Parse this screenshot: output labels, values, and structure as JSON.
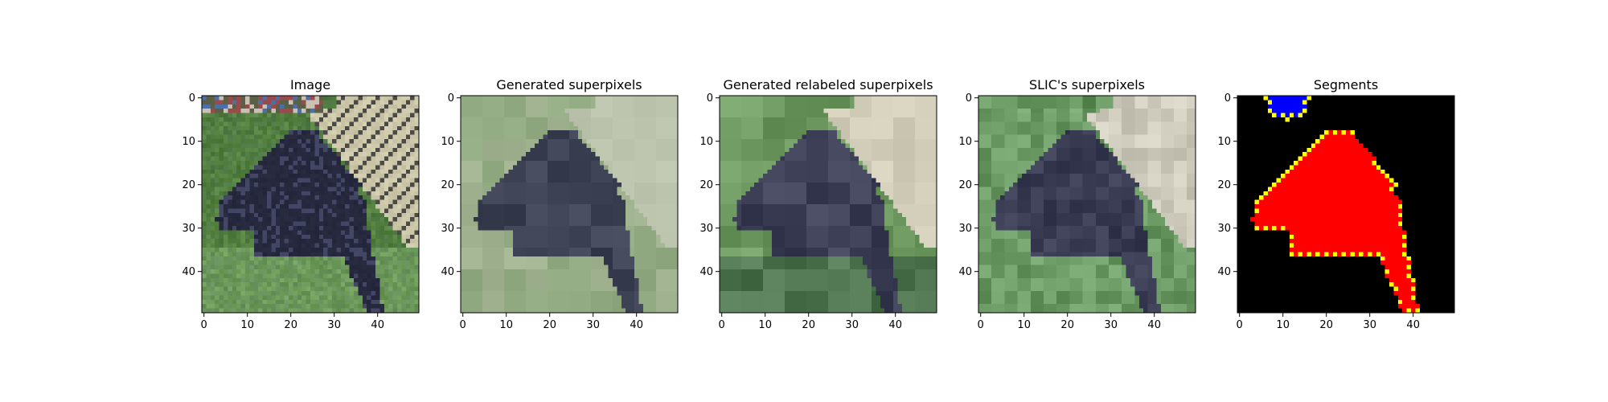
{
  "figure": {
    "panels": [
      {
        "title": "Image"
      },
      {
        "title": "Generated superpixels"
      },
      {
        "title": "Generated relabeled superpixels"
      },
      {
        "title": "SLIC's superpixels"
      },
      {
        "title": "Segments"
      }
    ]
  },
  "chart_data": [
    {
      "type": "heatmap",
      "title": "Image",
      "xlabel": "",
      "ylabel": "",
      "xlim": [
        -0.5,
        49.5
      ],
      "ylim": [
        49.5,
        -0.5
      ],
      "xticks": [
        0,
        10,
        20,
        30,
        40
      ],
      "yticks": [
        0,
        10,
        20,
        30,
        40
      ],
      "xtick_labels": [
        "0",
        "10",
        "20",
        "30",
        "40"
      ],
      "ytick_labels": [
        "0",
        "10",
        "20",
        "30",
        "40"
      ],
      "grid_size": [
        50,
        50
      ],
      "grid": false,
      "content": "photo",
      "palette": {
        "grass": "#5e8a4a",
        "grass_dark": "#3f6a34",
        "dog": "#22243a",
        "dog_light": "#3a3d5c",
        "fence": "#d8d2b4",
        "fence_dark": "#4c4a46"
      }
    },
    {
      "type": "heatmap",
      "title": "Generated superpixels",
      "xlabel": "",
      "ylabel": "",
      "xlim": [
        -0.5,
        49.5
      ],
      "ylim": [
        49.5,
        -0.5
      ],
      "xticks": [
        0,
        10,
        20,
        30,
        40
      ],
      "yticks": [
        0,
        10,
        20,
        30,
        40
      ],
      "xtick_labels": [
        "0",
        "10",
        "20",
        "30",
        "40"
      ],
      "ytick_labels": [
        "0",
        "10",
        "20",
        "30",
        "40"
      ],
      "grid_size": [
        50,
        50
      ],
      "grid": false,
      "content": "superpixels",
      "palette": {
        "light": "#a9bb98",
        "mid": "#8aa27a",
        "dark": "#2e3346",
        "pale": "#c3cbb4"
      }
    },
    {
      "type": "heatmap",
      "title": "Generated relabeled superpixels",
      "xlabel": "",
      "ylabel": "",
      "xlim": [
        -0.5,
        49.5
      ],
      "ylim": [
        49.5,
        -0.5
      ],
      "xticks": [
        0,
        10,
        20,
        30,
        40
      ],
      "yticks": [
        0,
        10,
        20,
        30,
        40
      ],
      "xtick_labels": [
        "0",
        "10",
        "20",
        "30",
        "40"
      ],
      "ytick_labels": [
        "0",
        "10",
        "20",
        "30",
        "40"
      ],
      "grid_size": [
        50,
        50
      ],
      "grid": false,
      "content": "relabeled",
      "palette": {
        "green": "#6f9a62",
        "green_dark": "#4f7650",
        "dog": "#2c2f46",
        "fence": "#dcd8c4"
      }
    },
    {
      "type": "heatmap",
      "title": "SLIC's superpixels",
      "xlabel": "",
      "ylabel": "",
      "xlim": [
        -0.5,
        49.5
      ],
      "ylim": [
        49.5,
        -0.5
      ],
      "xticks": [
        0,
        10,
        20,
        30,
        40
      ],
      "yticks": [
        0,
        10,
        20,
        30,
        40
      ],
      "xtick_labels": [
        "0",
        "10",
        "20",
        "30",
        "40"
      ],
      "ytick_labels": [
        "0",
        "10",
        "20",
        "30",
        "40"
      ],
      "grid_size": [
        50,
        50
      ],
      "grid": false,
      "content": "slic",
      "palette": {
        "green": "#6c9a64",
        "dog": "#2a2d44",
        "fence": "#e2ded0"
      }
    },
    {
      "type": "heatmap",
      "title": "Segments",
      "xlabel": "",
      "ylabel": "",
      "xlim": [
        -0.5,
        49.5
      ],
      "ylim": [
        49.5,
        -0.5
      ],
      "xticks": [
        0,
        10,
        20,
        30,
        40
      ],
      "yticks": [
        0,
        10,
        20,
        30,
        40
      ],
      "xtick_labels": [
        "0",
        "10",
        "20",
        "30",
        "40"
      ],
      "ytick_labels": [
        "0",
        "10",
        "20",
        "30",
        "40"
      ],
      "grid_size": [
        50,
        50
      ],
      "grid": false,
      "content": "segments",
      "palette": {
        "background": "#000000",
        "segment_1": "#0000ff",
        "segment_2": "#ff0000",
        "boundary": "#ffff00"
      },
      "segments": [
        {
          "color": "#0000ff",
          "region": "circle",
          "center": [
            11,
            0
          ],
          "radius": 5
        },
        {
          "color": "#ff0000",
          "region": "dog silhouette",
          "extent_x": [
            4,
            41
          ],
          "extent_y": [
            8,
            49
          ]
        }
      ]
    }
  ]
}
